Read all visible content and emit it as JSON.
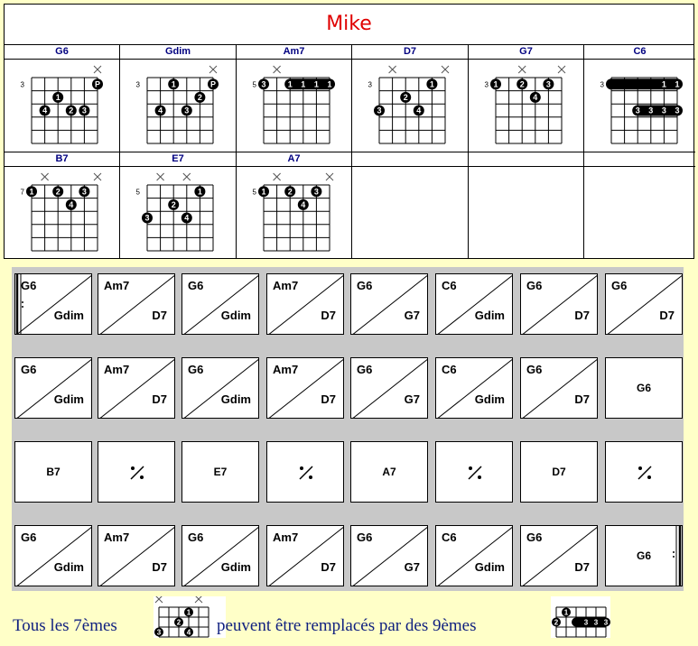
{
  "title": "Mike",
  "chords": [
    {
      "name": "G6",
      "fret": "3",
      "mute": [
        6
      ],
      "dots": [
        {
          "s": 6,
          "f": 0,
          "t": "P"
        },
        {
          "s": 3,
          "f": 1,
          "t": "1"
        },
        {
          "s": 5,
          "f": 2,
          "t": "3"
        },
        {
          "s": 4,
          "f": 2,
          "t": "2"
        },
        {
          "s": 2,
          "f": 2,
          "t": "4"
        }
      ]
    },
    {
      "name": "Gdim",
      "fret": "3",
      "mute": [
        6
      ],
      "dots": [
        {
          "s": 6,
          "f": 0,
          "t": "P"
        },
        {
          "s": 3,
          "f": 0,
          "t": "1"
        },
        {
          "s": 5,
          "f": 1,
          "t": "2"
        },
        {
          "s": 4,
          "f": 2,
          "t": "3"
        },
        {
          "s": 2,
          "f": 2,
          "t": "4"
        }
      ]
    },
    {
      "name": "Am7",
      "fret": "5",
      "mute": [
        2
      ],
      "dots": [
        {
          "s": 1,
          "f": 0,
          "t": "3"
        }
      ],
      "barre": {
        "from": 3,
        "to": 6,
        "f": 0,
        "labels": [
          "1",
          "1",
          "1",
          "1"
        ]
      }
    },
    {
      "name": "D7",
      "fret": "3",
      "mute": [
        2,
        6
      ],
      "dots": [
        {
          "s": 5,
          "f": 0,
          "t": "1"
        },
        {
          "s": 3,
          "f": 1,
          "t": "2"
        },
        {
          "s": 1,
          "f": 2,
          "t": "3"
        },
        {
          "s": 4,
          "f": 2,
          "t": "4"
        }
      ]
    },
    {
      "name": "G7",
      "fret": "3",
      "mute": [
        3,
        6
      ],
      "dots": [
        {
          "s": 1,
          "f": 0,
          "t": "1"
        },
        {
          "s": 3,
          "f": 0,
          "t": "2"
        },
        {
          "s": 5,
          "f": 0,
          "t": "3"
        },
        {
          "s": 4,
          "f": 1,
          "t": "4"
        }
      ]
    },
    {
      "name": "C6",
      "fret": "3",
      "mute": [],
      "dots": [],
      "barre": {
        "from": 1,
        "to": 6,
        "f": 0,
        "labels": [
          "1",
          "1"
        ]
      },
      "barre2": {
        "from": 3,
        "to": 6,
        "f": 2,
        "labels": [
          "3",
          "3",
          "3",
          "3"
        ]
      }
    },
    {
      "name": "B7",
      "fret": "7",
      "mute": [
        2,
        6
      ],
      "dots": [
        {
          "s": 1,
          "f": 0,
          "t": "1"
        },
        {
          "s": 3,
          "f": 0,
          "t": "2"
        },
        {
          "s": 5,
          "f": 0,
          "t": "3"
        },
        {
          "s": 4,
          "f": 1,
          "t": "4"
        }
      ]
    },
    {
      "name": "E7",
      "fret": "5",
      "mute": [
        2,
        4
      ],
      "dots": [
        {
          "s": 5,
          "f": 0,
          "t": "1"
        },
        {
          "s": 3,
          "f": 1,
          "t": "2"
        },
        {
          "s": 1,
          "f": 2,
          "t": "3"
        },
        {
          "s": 4,
          "f": 2,
          "t": "4"
        }
      ]
    },
    {
      "name": "A7",
      "fret": "5",
      "mute": [
        2,
        6
      ],
      "dots": [
        {
          "s": 1,
          "f": 0,
          "t": "1"
        },
        {
          "s": 3,
          "f": 0,
          "t": "2"
        },
        {
          "s": 5,
          "f": 0,
          "t": "3"
        },
        {
          "s": 4,
          "f": 1,
          "t": "4"
        }
      ]
    },
    {
      "name": "",
      "fret": "",
      "mute": [],
      "dots": []
    },
    {
      "name": "",
      "fret": "",
      "mute": [],
      "dots": []
    },
    {
      "name": "",
      "fret": "",
      "mute": [],
      "dots": []
    }
  ],
  "grid": [
    [
      {
        "a": "G6",
        "b": "Gdim"
      },
      {
        "a": "Am7",
        "b": "D7"
      },
      {
        "a": "G6",
        "b": "Gdim"
      },
      {
        "a": "Am7",
        "b": "D7"
      },
      {
        "a": "G6",
        "b": "G7"
      },
      {
        "a": "C6",
        "b": "Gdim"
      },
      {
        "a": "G6",
        "b": "D7"
      },
      {
        "a": "G6",
        "b": "D7"
      }
    ],
    [
      {
        "a": "G6",
        "b": "Gdim"
      },
      {
        "a": "Am7",
        "b": "D7"
      },
      {
        "a": "G6",
        "b": "Gdim"
      },
      {
        "a": "Am7",
        "b": "D7"
      },
      {
        "a": "G6",
        "b": "G7"
      },
      {
        "a": "C6",
        "b": "Gdim"
      },
      {
        "a": "G6",
        "b": "D7"
      },
      {
        "c": "G6"
      }
    ],
    [
      {
        "c": "B7"
      },
      {
        "r": true
      },
      {
        "c": "E7"
      },
      {
        "r": true
      },
      {
        "c": "A7"
      },
      {
        "r": true
      },
      {
        "c": "D7"
      },
      {
        "r": true
      }
    ],
    [
      {
        "a": "G6",
        "b": "Gdim"
      },
      {
        "a": "Am7",
        "b": "D7"
      },
      {
        "a": "G6",
        "b": "Gdim"
      },
      {
        "a": "Am7",
        "b": "D7"
      },
      {
        "a": "G6",
        "b": "G7"
      },
      {
        "a": "C6",
        "b": "Gdim"
      },
      {
        "a": "G6",
        "b": "D7"
      },
      {
        "c": "G6"
      }
    ]
  ],
  "note": {
    "part1": "Tous les 7èmes",
    "part2": "peuvent être remplacés par des 9èmes",
    "ex1": {
      "mute": [
        1,
        5
      ],
      "dots": [
        {
          "s": 4,
          "f": 0,
          "t": "1"
        },
        {
          "s": 3,
          "f": 1,
          "t": "2"
        },
        {
          "s": 1,
          "f": 2,
          "t": "3"
        },
        {
          "s": 4,
          "f": 2,
          "t": "4"
        }
      ]
    },
    "ex2": {
      "mute": [],
      "dots": [
        {
          "s": 2,
          "f": 0,
          "t": "1"
        },
        {
          "s": 1,
          "f": 1,
          "t": "2"
        }
      ],
      "barre": {
        "from": 3,
        "to": 6,
        "f": 1,
        "labels": [
          "3",
          "3",
          "3"
        ]
      }
    }
  }
}
